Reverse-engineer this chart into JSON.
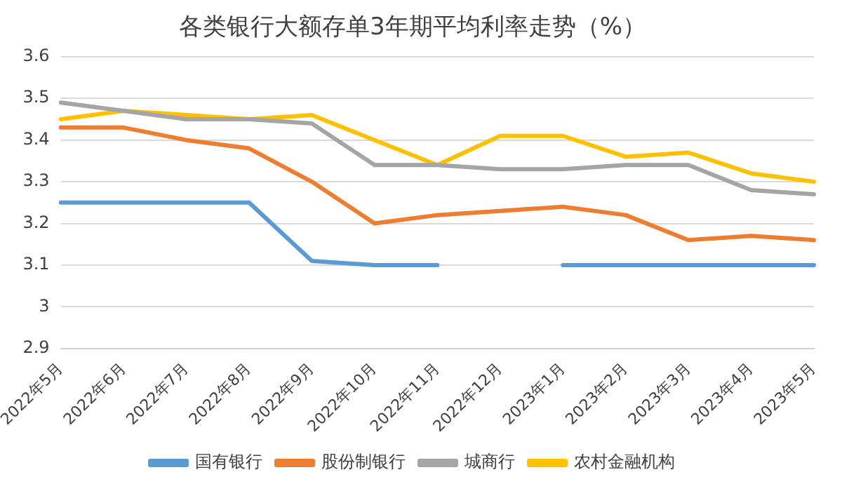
{
  "chart_data": {
    "type": "line",
    "title": "各类银行大额存单3年期平均利率走势（%）",
    "categories": [
      "2022年5月",
      "2022年6月",
      "2022年7月",
      "2022年8月",
      "2022年9月",
      "2022年10月",
      "2022年11月",
      "2022年12月",
      "2023年1月",
      "2023年2月",
      "2023年3月",
      "2023年4月",
      "2023年5月"
    ],
    "series": [
      {
        "name": "国有银行",
        "color": "#5b9bd5",
        "values": [
          3.25,
          3.25,
          3.25,
          3.25,
          3.11,
          3.1,
          3.1,
          null,
          3.1,
          3.1,
          3.1,
          3.1,
          3.1
        ]
      },
      {
        "name": "股份制银行",
        "color": "#ed7d31",
        "values": [
          3.43,
          3.43,
          3.4,
          3.38,
          3.3,
          3.2,
          3.22,
          3.23,
          3.24,
          3.22,
          3.16,
          3.17,
          3.16
        ]
      },
      {
        "name": "城商行",
        "color": "#a5a5a5",
        "values": [
          3.49,
          3.47,
          3.45,
          3.45,
          3.44,
          3.34,
          3.34,
          3.33,
          3.33,
          3.34,
          3.34,
          3.28,
          3.27
        ]
      },
      {
        "name": "农村金融机构",
        "color": "#ffc000",
        "values": [
          3.45,
          3.47,
          3.46,
          3.45,
          3.46,
          3.4,
          3.34,
          3.41,
          3.41,
          3.36,
          3.37,
          3.32,
          3.3
        ]
      }
    ],
    "ylim": [
      2.9,
      3.6
    ],
    "yticks": [
      2.9,
      3,
      3.1,
      3.2,
      3.3,
      3.4,
      3.5,
      3.6
    ],
    "grid": "y",
    "legend": "bottom",
    "marker": "none",
    "line_style": "solid"
  }
}
